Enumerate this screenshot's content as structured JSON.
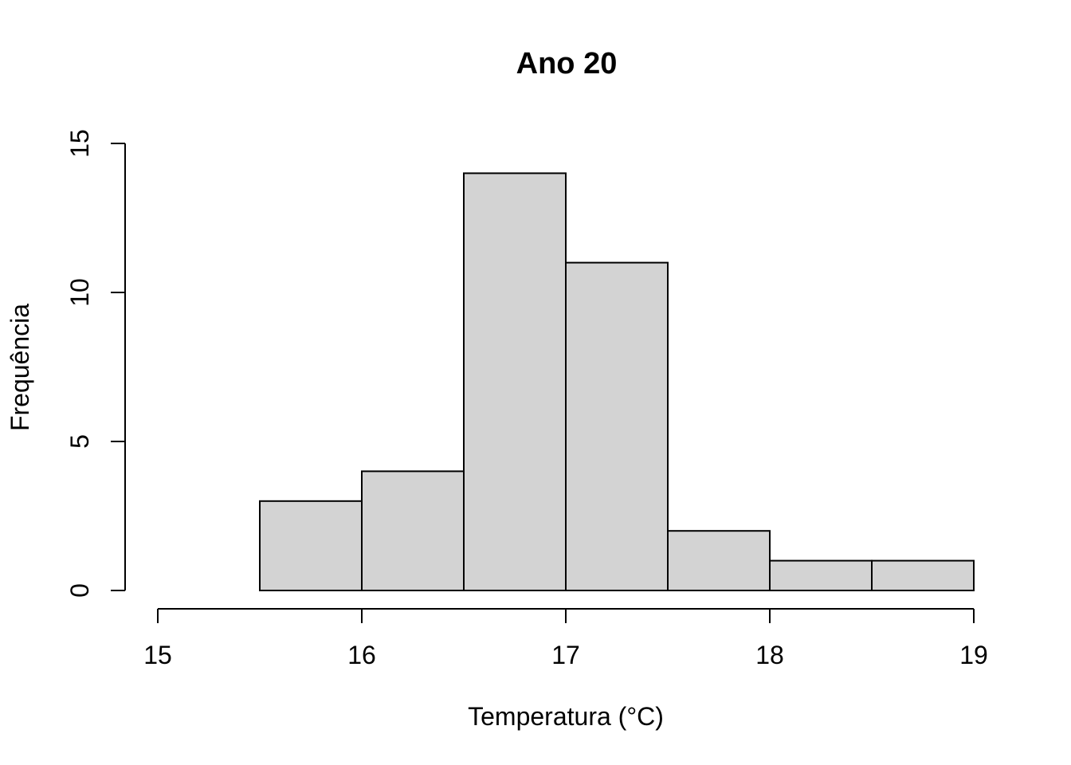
{
  "chart_data": {
    "type": "bar",
    "subtype": "histogram",
    "title": "Ano 20",
    "xlabel": "Temperatura (°C)",
    "ylabel": "Frequência",
    "bins": [
      {
        "start": 15.5,
        "end": 16.0,
        "count": 3
      },
      {
        "start": 16.0,
        "end": 16.5,
        "count": 4
      },
      {
        "start": 16.5,
        "end": 17.0,
        "count": 14
      },
      {
        "start": 17.0,
        "end": 17.5,
        "count": 11
      },
      {
        "start": 17.5,
        "end": 18.0,
        "count": 2
      },
      {
        "start": 18.0,
        "end": 18.5,
        "count": 1
      },
      {
        "start": 18.5,
        "end": 19.0,
        "count": 1
      }
    ],
    "xlim": [
      15,
      19
    ],
    "ylim": [
      0,
      15
    ],
    "xticks": [
      "15",
      "16",
      "17",
      "18",
      "19"
    ],
    "yticks": [
      "0",
      "5",
      "10",
      "15"
    ],
    "bar_color": "#d3d3d3",
    "grid": false,
    "legend": "none"
  }
}
